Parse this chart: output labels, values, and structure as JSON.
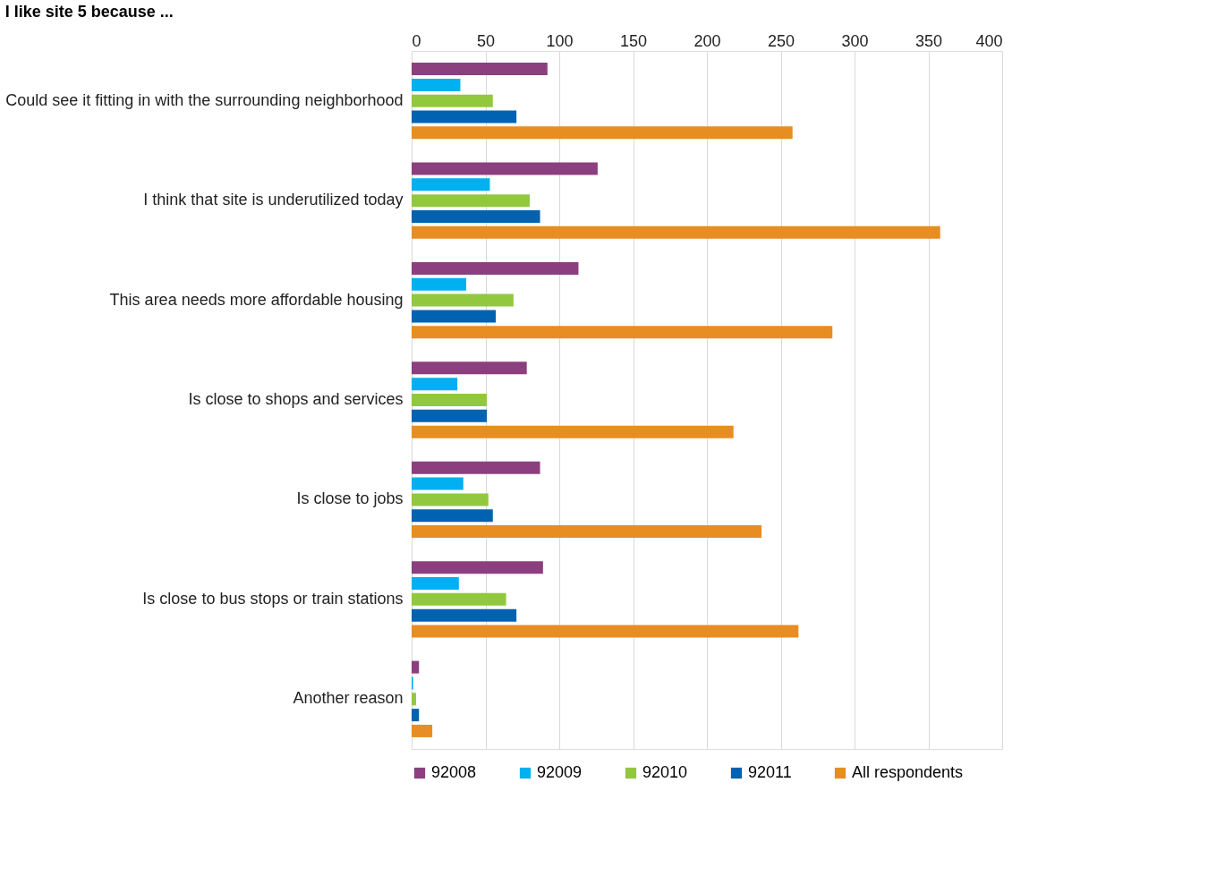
{
  "chart_data": {
    "type": "bar",
    "orientation": "horizontal",
    "title": "I like site 5 because ...",
    "categories": [
      "Could see it fitting in with the surrounding neighborhood",
      "I think that site is underutilized today",
      "This area needs more affordable housing",
      "Is close to shops and services",
      "Is close to jobs",
      "Is close to bus stops or train stations",
      "Another reason"
    ],
    "series": [
      {
        "name": "92008",
        "color": "#8b3f7f",
        "values": [
          92,
          126,
          113,
          78,
          87,
          89,
          5
        ]
      },
      {
        "name": "92009",
        "color": "#00b0f0",
        "values": [
          33,
          53,
          37,
          31,
          35,
          32,
          1
        ]
      },
      {
        "name": "92010",
        "color": "#92c83e",
        "values": [
          55,
          80,
          69,
          51,
          52,
          64,
          3
        ]
      },
      {
        "name": "92011",
        "color": "#0062b1",
        "values": [
          71,
          87,
          57,
          51,
          55,
          71,
          5
        ]
      },
      {
        "name": "All respondents",
        "color": "#e88d22",
        "values": [
          258,
          358,
          285,
          218,
          237,
          262,
          14
        ]
      }
    ],
    "xlim": [
      0,
      400
    ],
    "xticks": [
      0,
      50,
      100,
      150,
      200,
      250,
      300,
      350,
      400
    ],
    "grid": "x",
    "legend": "bottom"
  }
}
